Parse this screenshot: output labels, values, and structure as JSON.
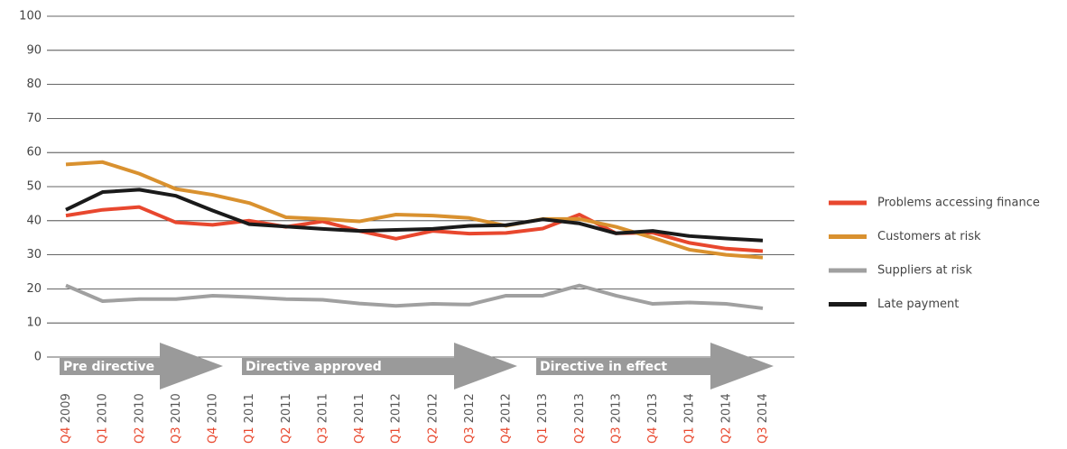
{
  "chart_data": {
    "type": "line",
    "categories": [
      "Q4 2009",
      "Q1 2010",
      "Q2 2010",
      "Q3 2010",
      "Q4 2010",
      "Q1 2011",
      "Q2 2011",
      "Q3 2011",
      "Q4 2011",
      "Q1 2012",
      "Q2 2012",
      "Q3 2012",
      "Q4 2012",
      "Q1 2013",
      "Q2 2013",
      "Q3 2013",
      "Q4 2013",
      "Q1 2014",
      "Q2 2014",
      "Q3 2014"
    ],
    "series": [
      {
        "name": "Problems accessing finance",
        "color": "#e8472e",
        "values": [
          41.5,
          43.2,
          44,
          39.5,
          38.8,
          40,
          38.2,
          39.8,
          37,
          34.7,
          37,
          36.2,
          36.4,
          37.7,
          41.8,
          36.3,
          36.5,
          33.5,
          31.8,
          31.1
        ]
      },
      {
        "name": "Customers at risk",
        "color": "#d9912f",
        "values": [
          56.5,
          57.2,
          53.8,
          49.3,
          47.6,
          45.2,
          41,
          40.5,
          39.8,
          41.8,
          41.5,
          40.8,
          38.5,
          40.5,
          40.5,
          38.2,
          35,
          31.5,
          30,
          29.2
        ]
      },
      {
        "name": "Suppliers at risk",
        "color": "#a0a0a0",
        "values": [
          21,
          16.4,
          17,
          17,
          18,
          17.6,
          17,
          16.8,
          15.7,
          15,
          15.6,
          15.4,
          18,
          18,
          21,
          18,
          15.6,
          16,
          15.6,
          14.3
        ]
      },
      {
        "name": "Late payment",
        "color": "#1a1a1a",
        "values": [
          43.2,
          48.4,
          49.1,
          47.3,
          43,
          39,
          38.3,
          37.6,
          37,
          37.3,
          37.6,
          38.5,
          38.7,
          40.4,
          39.2,
          36.3,
          37,
          35.5,
          34.8,
          34.2
        ]
      }
    ],
    "annotations": [
      "Pre directive",
      "Directive approved",
      "Directive in effect"
    ],
    "ylim": [
      0,
      100
    ],
    "yticks": [
      0,
      10,
      20,
      30,
      40,
      50,
      60,
      70,
      80,
      90,
      100
    ],
    "grid": true,
    "legend": "right"
  }
}
